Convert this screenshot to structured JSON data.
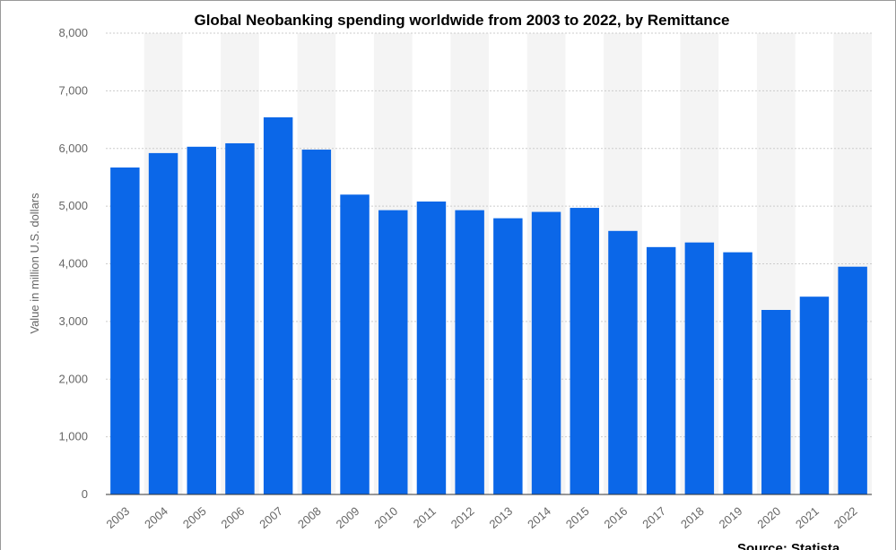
{
  "chart_data": {
    "type": "bar",
    "title": "Global Neobanking spending worldwide from 2003 to 2022, by Remittance",
    "y_label": "Value in million U.S. dollars",
    "source": "Source: Statista",
    "categories": [
      "2003",
      "2004",
      "2005",
      "2006",
      "2007",
      "2008",
      "2009",
      "2010",
      "2011",
      "2012",
      "2013",
      "2014",
      "2015",
      "2016",
      "2017",
      "2018",
      "2019",
      "2020",
      "2021",
      "2022"
    ],
    "values": [
      5670,
      5920,
      6030,
      6090,
      6540,
      5980,
      5200,
      4930,
      5080,
      4930,
      4790,
      4900,
      4970,
      4570,
      4290,
      4370,
      4200,
      3200,
      3430,
      3950
    ],
    "color": "#0b67e8",
    "ylim": [
      0,
      8000
    ],
    "yticks": [
      0,
      {
        "value": 1000,
        "label": "1,000"
      },
      {
        "value": 2000,
        "label": "2,000"
      },
      {
        "value": 3000,
        "label": "3,000"
      },
      {
        "value": 4000,
        "label": "4,000"
      },
      {
        "value": 5000,
        "label": "5,000"
      },
      {
        "value": 6000,
        "label": "6,000"
      },
      {
        "value": 7000,
        "label": "7,000"
      },
      {
        "value": 8000,
        "label": "8,000"
      }
    ],
    "grid": true
  }
}
